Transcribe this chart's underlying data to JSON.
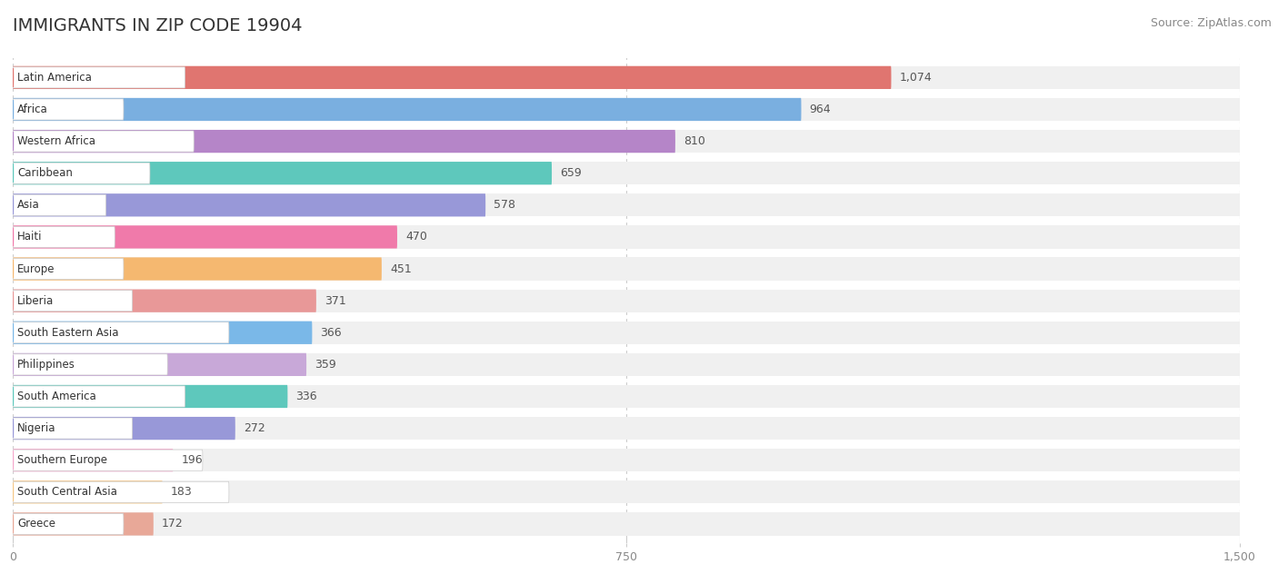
{
  "title": "IMMIGRANTS IN ZIP CODE 19904",
  "source": "Source: ZipAtlas.com",
  "categories": [
    "Latin America",
    "Africa",
    "Western Africa",
    "Caribbean",
    "Asia",
    "Haiti",
    "Europe",
    "Liberia",
    "South Eastern Asia",
    "Philippines",
    "South America",
    "Nigeria",
    "Southern Europe",
    "South Central Asia",
    "Greece"
  ],
  "values": [
    1074,
    964,
    810,
    659,
    578,
    470,
    451,
    371,
    366,
    359,
    336,
    272,
    196,
    183,
    172
  ],
  "bar_colors": [
    "#e07570",
    "#7aafe0",
    "#b585c8",
    "#5ec8bc",
    "#9898d8",
    "#f07aaa",
    "#f5b870",
    "#e89898",
    "#7ab8e8",
    "#c8a8d8",
    "#5ec8bc",
    "#9898d8",
    "#f5a8cc",
    "#f5c888",
    "#e8a898"
  ],
  "xlim": [
    0,
    1500
  ],
  "xticks": [
    0,
    750,
    1500
  ],
  "background_color": "#ffffff",
  "row_bg_color": "#f0f0f0",
  "title_fontsize": 14,
  "source_fontsize": 9
}
